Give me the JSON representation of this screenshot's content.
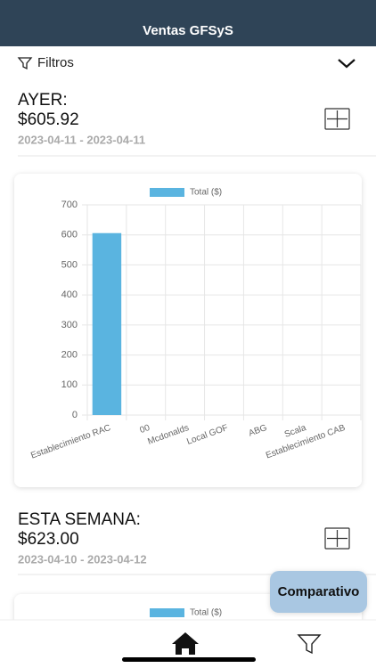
{
  "header": {
    "title": "Ventas GFSyS"
  },
  "filters": {
    "label": "Filtros"
  },
  "sections": [
    {
      "label": "AYER:",
      "amount": "$605.92",
      "date_range": "2023-04-11 - 2023-04-11"
    },
    {
      "label": "ESTA SEMANA:",
      "amount": "$623.00",
      "date_range": "2023-04-10 - 2023-04-12"
    }
  ],
  "chart_data": [
    {
      "type": "bar",
      "categories": [
        "Establecimiento RAC",
        "00",
        "Mcdonalds",
        "Local GOF",
        "ABG",
        "Scala",
        "Establecimiento CAB"
      ],
      "series": [
        {
          "name": "Total ($)",
          "color": "#5ab4e0",
          "values": [
            605.92,
            0,
            0,
            0,
            0,
            0,
            0
          ]
        }
      ],
      "ylim": [
        0,
        700
      ],
      "yticks": [
        0,
        100,
        200,
        300,
        400,
        500,
        600,
        700
      ],
      "grid": true
    },
    {
      "type": "bar",
      "series": [
        {
          "name": "Total ($)",
          "color": "#5ab4e0"
        }
      ]
    }
  ],
  "button": {
    "label": "Comparativo"
  }
}
